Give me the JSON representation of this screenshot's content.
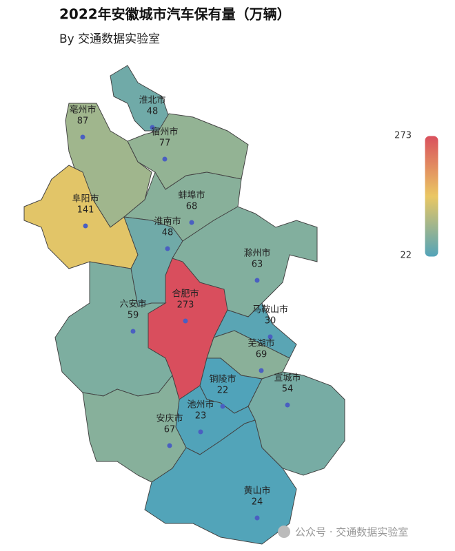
{
  "chart_data": {
    "type": "map",
    "title": "2022年安徽城市汽车保有量（万辆）",
    "subtitle": "By 交通数据实验室",
    "categories": [
      "亳州市",
      "淮北市",
      "宿州市",
      "阜阳市",
      "蚌埠市",
      "淮南市",
      "滁州市",
      "合肥市",
      "六安市",
      "马鞍山市",
      "芜湖市",
      "宣城市",
      "铜陵市",
      "池州市",
      "安庆市",
      "黄山市"
    ],
    "values": [
      87,
      48,
      77,
      141,
      68,
      48,
      63,
      273,
      59,
      30,
      69,
      54,
      22,
      23,
      67,
      24
    ],
    "visual_map": {
      "min": 22,
      "max": 273,
      "colors": [
        "#50a3ba",
        "#eac763",
        "#d94e5d"
      ]
    }
  },
  "watermark": "公众号 · 交通数据实验室"
}
